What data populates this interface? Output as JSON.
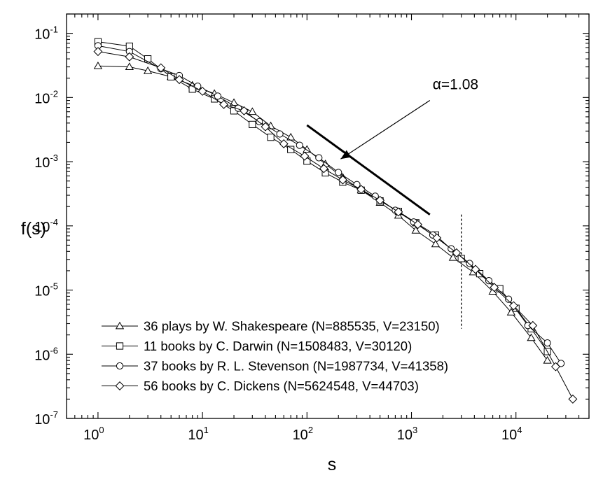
{
  "chart_data": {
    "type": "line",
    "xscale": "log",
    "yscale": "log",
    "xlabel": "s",
    "ylabel": "f(s)",
    "xlim": [
      0.5,
      50000
    ],
    "ylim": [
      1e-07,
      0.2
    ],
    "xticks": [
      {
        "base": "10",
        "exp": "0",
        "value": 1
      },
      {
        "base": "10",
        "exp": "1",
        "value": 10
      },
      {
        "base": "10",
        "exp": "2",
        "value": 100
      },
      {
        "base": "10",
        "exp": "3",
        "value": 1000
      },
      {
        "base": "10",
        "exp": "4",
        "value": 10000
      }
    ],
    "yticks": [
      {
        "base": "10",
        "exp": "-1",
        "value": 0.1
      },
      {
        "base": "10",
        "exp": "-2",
        "value": 0.01
      },
      {
        "base": "10",
        "exp": "-3",
        "value": 0.001
      },
      {
        "base": "10",
        "exp": "-4",
        "value": 0.0001
      },
      {
        "base": "10",
        "exp": "-5",
        "value": 1e-05
      },
      {
        "base": "10",
        "exp": "-6",
        "value": 1e-06
      },
      {
        "base": "10",
        "exp": "-7",
        "value": 1e-07
      }
    ],
    "grid": false,
    "legend_position": "bottom-left",
    "series": [
      {
        "name": "36 plays by W. Shakespeare  (N=885535, V=23150)",
        "marker": "triangle",
        "x": [
          1,
          2,
          3,
          5,
          8,
          13,
          20,
          30,
          45,
          70,
          100,
          150,
          220,
          330,
          500,
          750,
          1100,
          1700,
          2500,
          3900,
          6000,
          9000,
          14000,
          20000
        ],
        "y": [
          0.031,
          0.03,
          0.026,
          0.021,
          0.0155,
          0.0115,
          0.0083,
          0.006,
          0.0036,
          0.0024,
          0.00155,
          0.00092,
          0.00057,
          0.00036,
          0.00023,
          0.000145,
          8.5e-05,
          5.2e-05,
          3.2e-05,
          1.9e-05,
          9.5e-06,
          4.5e-06,
          1.8e-06,
          8e-07
        ]
      },
      {
        "name": "11 books by C. Darwin (N=1508483, V=30120)",
        "marker": "square",
        "x": [
          1,
          2,
          3,
          5,
          8,
          13,
          20,
          30,
          45,
          70,
          100,
          150,
          220,
          330,
          500,
          750,
          1100,
          1700,
          3000,
          4500,
          7000,
          10000,
          14000,
          20000
        ],
        "y": [
          0.074,
          0.063,
          0.04,
          0.021,
          0.0135,
          0.0095,
          0.0062,
          0.0038,
          0.0024,
          0.00155,
          0.00102,
          0.00067,
          0.00048,
          0.00036,
          0.000245,
          0.000168,
          0.000112,
          7.2e-05,
          3.1e-05,
          1.8e-05,
          1.05e-05,
          5.2e-06,
          2.5e-06,
          1.1e-06
        ]
      },
      {
        "name": "37 books by R. L. Stevenson (N=1987734, V=41358)",
        "marker": "circle",
        "x": [
          1,
          2,
          4,
          6,
          9,
          14,
          22,
          35,
          55,
          85,
          130,
          200,
          300,
          450,
          700,
          1050,
          1600,
          2400,
          3600,
          5500,
          8500,
          13000,
          20000,
          27000
        ],
        "y": [
          0.064,
          0.052,
          0.028,
          0.022,
          0.015,
          0.0105,
          0.0068,
          0.0042,
          0.0027,
          0.0018,
          0.00115,
          0.00068,
          0.00044,
          0.00029,
          0.000175,
          0.000115,
          7.2e-05,
          4.4e-05,
          2.6e-05,
          1.4e-05,
          7.2e-06,
          2.8e-06,
          1.5e-06,
          7.2e-07
        ]
      },
      {
        "name": "56 books by C. Dickens (N=5624548, V=44703)",
        "marker": "diamond",
        "x": [
          1,
          2,
          4,
          6,
          10,
          16,
          25,
          40,
          60,
          95,
          145,
          220,
          330,
          500,
          750,
          1150,
          1750,
          2700,
          4100,
          6200,
          9500,
          14500,
          24000,
          35000
        ],
        "y": [
          0.052,
          0.043,
          0.029,
          0.019,
          0.0125,
          0.0078,
          0.0062,
          0.0035,
          0.0019,
          0.00122,
          0.00078,
          0.00052,
          0.00037,
          0.00025,
          0.000165,
          0.000105,
          6.5e-05,
          3.8e-05,
          2.1e-05,
          1.1e-05,
          5.7e-06,
          2.8e-06,
          6.4e-07,
          2e-07
        ]
      }
    ],
    "annotations": {
      "slope_label": "α=1.08",
      "slope_line": {
        "x": [
          100,
          1500
        ],
        "y": [
          0.0037,
          0.00015
        ]
      },
      "arrow": {
        "from": {
          "x": 1500,
          "y": 0.009
        },
        "to": {
          "x": 210,
          "y": 0.0011
        }
      },
      "dashed_line": {
        "x": 3000,
        "y": [
          0.00015,
          2.5e-06
        ]
      }
    }
  }
}
